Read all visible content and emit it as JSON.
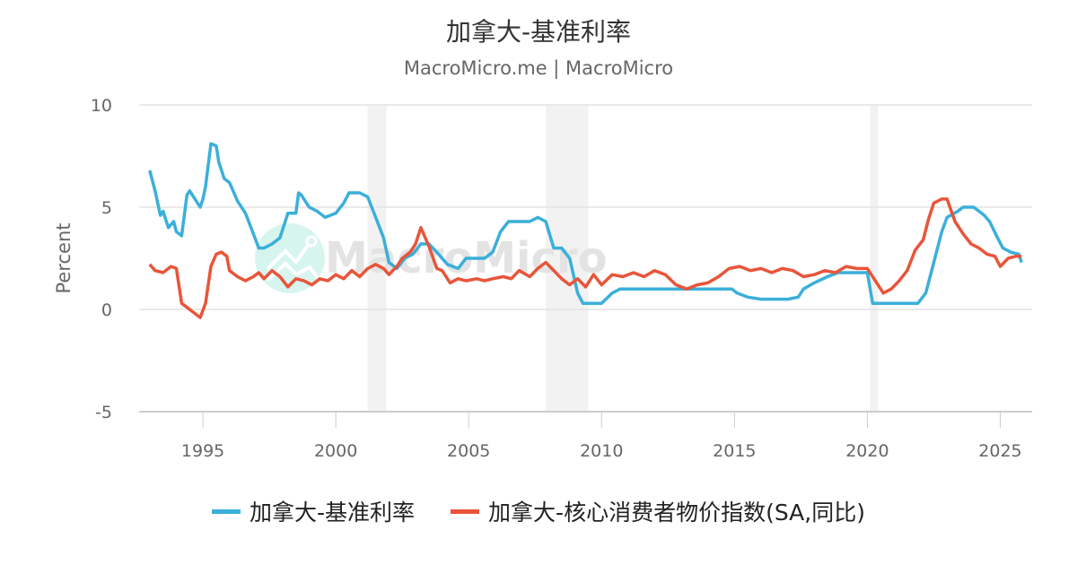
{
  "header": {
    "title": "加拿大-基准利率",
    "subtitle": "MacroMicro.me | MacroMicro"
  },
  "watermark": "MacroMicro",
  "legend": [
    {
      "label": "加拿大-基准利率",
      "color": "#3BAFDA"
    },
    {
      "label": "加拿大-核心消费者物价指数(SA,同比)",
      "color": "#E8553A"
    }
  ],
  "chart_data": {
    "type": "line",
    "title": "加拿大-基准利率",
    "subtitle": "MacroMicro.me | MacroMicro",
    "xlabel": "",
    "ylabel": "Percent",
    "ylim": [
      -5,
      10
    ],
    "yticks": [
      10,
      5,
      0,
      -5
    ],
    "xlim": [
      1992.6,
      2026.2
    ],
    "xticks": [
      1995,
      2000,
      2005,
      2010,
      2015,
      2020,
      2025
    ],
    "grid": true,
    "legend_position": "bottom",
    "recession_bands": [
      [
        2001.2,
        2001.9
      ],
      [
        2007.9,
        2009.5
      ],
      [
        2020.1,
        2020.4
      ]
    ],
    "series": [
      {
        "name": "加拿大-基准利率",
        "color": "#3BAFDA",
        "x": [
          1993.0,
          1993.2,
          1993.4,
          1993.5,
          1993.7,
          1993.9,
          1994.0,
          1994.2,
          1994.4,
          1994.5,
          1994.7,
          1994.9,
          1995.0,
          1995.1,
          1995.3,
          1995.5,
          1995.6,
          1995.8,
          1996.0,
          1996.3,
          1996.6,
          1996.9,
          1997.1,
          1997.3,
          1997.6,
          1997.9,
          1998.2,
          1998.5,
          1998.6,
          1998.7,
          1999.0,
          1999.3,
          1999.6,
          2000.0,
          2000.3,
          2000.5,
          2000.9,
          2001.2,
          2001.5,
          2001.8,
          2002.0,
          2002.3,
          2002.6,
          2002.9,
          2003.2,
          2003.5,
          2003.8,
          2004.2,
          2004.6,
          2004.9,
          2005.3,
          2005.6,
          2005.9,
          2006.2,
          2006.5,
          2006.9,
          2007.3,
          2007.6,
          2007.9,
          2008.2,
          2008.5,
          2008.8,
          2009.1,
          2009.3,
          2009.6,
          2010.0,
          2010.4,
          2010.7,
          2011.0,
          2012.0,
          2013.0,
          2014.0,
          2014.9,
          2015.1,
          2015.5,
          2016.0,
          2017.0,
          2017.4,
          2017.6,
          2018.0,
          2018.5,
          2018.9,
          2019.5,
          2020.0,
          2020.2,
          2020.4,
          2021.0,
          2021.9,
          2022.2,
          2022.4,
          2022.6,
          2022.8,
          2023.0,
          2023.4,
          2023.6,
          2024.0,
          2024.4,
          2024.6,
          2024.9,
          2025.1,
          2025.4,
          2025.7,
          2025.8
        ],
        "values": [
          6.8,
          5.8,
          4.6,
          4.8,
          4.0,
          4.3,
          3.8,
          3.6,
          5.6,
          5.8,
          5.4,
          5.0,
          5.4,
          6.0,
          8.1,
          8.0,
          7.2,
          6.4,
          6.2,
          5.3,
          4.7,
          3.7,
          3.0,
          3.0,
          3.2,
          3.5,
          4.7,
          4.7,
          5.7,
          5.6,
          5.0,
          4.8,
          4.5,
          4.7,
          5.2,
          5.7,
          5.7,
          5.5,
          4.5,
          3.5,
          2.3,
          2.0,
          2.5,
          2.7,
          3.2,
          3.2,
          2.8,
          2.2,
          2.0,
          2.5,
          2.5,
          2.5,
          2.8,
          3.8,
          4.3,
          4.3,
          4.3,
          4.5,
          4.3,
          3.0,
          3.0,
          2.5,
          0.8,
          0.3,
          0.3,
          0.3,
          0.8,
          1.0,
          1.0,
          1.0,
          1.0,
          1.0,
          1.0,
          0.8,
          0.6,
          0.5,
          0.5,
          0.6,
          1.0,
          1.3,
          1.6,
          1.8,
          1.8,
          1.8,
          0.3,
          0.3,
          0.3,
          0.3,
          0.8,
          1.8,
          2.8,
          3.8,
          4.5,
          4.8,
          5.0,
          5.0,
          4.6,
          4.3,
          3.5,
          3.0,
          2.8,
          2.7,
          2.3
        ]
      },
      {
        "name": "加拿大-核心消费者物价指数(SA,同比)",
        "color": "#E8553A",
        "x": [
          1993.0,
          1993.2,
          1993.5,
          1993.8,
          1994.0,
          1994.2,
          1994.4,
          1994.6,
          1994.9,
          1995.1,
          1995.3,
          1995.5,
          1995.7,
          1995.9,
          1996.0,
          1996.3,
          1996.6,
          1996.9,
          1997.1,
          1997.3,
          1997.6,
          1997.9,
          1998.2,
          1998.5,
          1998.8,
          1999.1,
          1999.4,
          1999.7,
          2000.0,
          2000.3,
          2000.6,
          2000.9,
          2001.2,
          2001.5,
          2001.8,
          2002.0,
          2002.3,
          2002.5,
          2002.8,
          2003.0,
          2003.2,
          2003.5,
          2003.8,
          2004.0,
          2004.3,
          2004.6,
          2004.9,
          2005.3,
          2005.6,
          2005.9,
          2006.3,
          2006.6,
          2006.9,
          2007.3,
          2007.6,
          2007.9,
          2008.2,
          2008.5,
          2008.8,
          2009.1,
          2009.4,
          2009.7,
          2010.0,
          2010.4,
          2010.8,
          2011.2,
          2011.6,
          2012.0,
          2012.4,
          2012.8,
          2013.2,
          2013.6,
          2014.0,
          2014.4,
          2014.8,
          2015.2,
          2015.6,
          2016.0,
          2016.4,
          2016.8,
          2017.2,
          2017.6,
          2018.0,
          2018.4,
          2018.8,
          2019.2,
          2019.6,
          2020.0,
          2020.3,
          2020.6,
          2020.9,
          2021.2,
          2021.5,
          2021.8,
          2022.1,
          2022.3,
          2022.5,
          2022.8,
          2023.0,
          2023.3,
          2023.6,
          2023.9,
          2024.2,
          2024.5,
          2024.8,
          2025.0,
          2025.3,
          2025.6,
          2025.8
        ],
        "values": [
          2.2,
          1.9,
          1.8,
          2.1,
          2.0,
          0.3,
          0.1,
          -0.1,
          -0.4,
          0.3,
          2.1,
          2.7,
          2.8,
          2.6,
          1.9,
          1.6,
          1.4,
          1.6,
          1.8,
          1.5,
          1.9,
          1.6,
          1.1,
          1.5,
          1.4,
          1.2,
          1.5,
          1.4,
          1.7,
          1.5,
          1.9,
          1.6,
          2.0,
          2.2,
          2.0,
          1.7,
          2.1,
          2.5,
          2.8,
          3.2,
          4.0,
          3.1,
          2.0,
          1.9,
          1.3,
          1.5,
          1.4,
          1.5,
          1.4,
          1.5,
          1.6,
          1.5,
          1.9,
          1.6,
          2.0,
          2.3,
          1.9,
          1.5,
          1.2,
          1.5,
          1.1,
          1.7,
          1.2,
          1.7,
          1.6,
          1.8,
          1.6,
          1.9,
          1.7,
          1.2,
          1.0,
          1.2,
          1.3,
          1.6,
          2.0,
          2.1,
          1.9,
          2.0,
          1.8,
          2.0,
          1.9,
          1.6,
          1.7,
          1.9,
          1.8,
          2.1,
          2.0,
          2.0,
          1.4,
          0.8,
          1.0,
          1.4,
          1.9,
          2.9,
          3.4,
          4.4,
          5.2,
          5.4,
          5.4,
          4.3,
          3.7,
          3.2,
          3.0,
          2.7,
          2.6,
          2.1,
          2.5,
          2.6,
          2.6
        ]
      }
    ]
  }
}
